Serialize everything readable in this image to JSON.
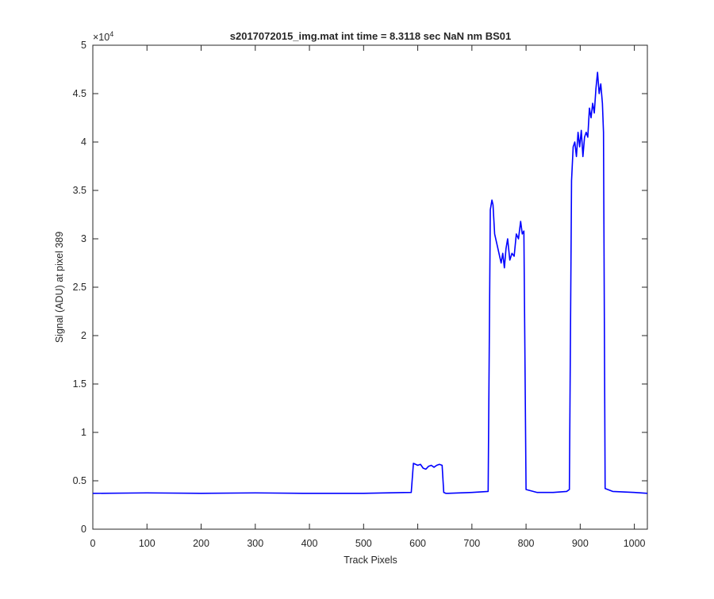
{
  "chart_data": {
    "type": "line",
    "title": "s2017072015_img.mat int time = 8.3118 sec  NaN nm BS01",
    "xlabel": "Track Pixels",
    "ylabel": "Signal (ADU) at pixel 389",
    "y_exponent_label": "×10",
    "y_exponent_power": "4",
    "xlim": [
      0,
      1024
    ],
    "ylim": [
      0,
      50000
    ],
    "x_ticks": [
      0,
      100,
      200,
      300,
      400,
      500,
      600,
      700,
      800,
      900,
      1000
    ],
    "x_tick_labels": [
      "0",
      "100",
      "200",
      "300",
      "400",
      "500",
      "600",
      "700",
      "800",
      "900",
      "1000"
    ],
    "y_ticks": [
      0,
      5000,
      10000,
      15000,
      20000,
      25000,
      30000,
      35000,
      40000,
      45000,
      50000
    ],
    "y_tick_labels": [
      "0",
      "0.5",
      "1",
      "1.5",
      "2",
      "2.5",
      "3",
      "3.5",
      "4",
      "4.5",
      "5"
    ],
    "grid": false,
    "line_color": "#0000ff",
    "series": [
      {
        "x": [
          0,
          100,
          200,
          300,
          400,
          500,
          588,
          592,
          596,
          600,
          605,
          610,
          615,
          620,
          625,
          630,
          635,
          640,
          645,
          648,
          652,
          656,
          700,
          730,
          734,
          737,
          739,
          742,
          746,
          750,
          754,
          757,
          760,
          763,
          766,
          770,
          774,
          778,
          782,
          786,
          790,
          793,
          796,
          800,
          820,
          850,
          875,
          880,
          884,
          887,
          890,
          893,
          896,
          899,
          902,
          905,
          908,
          911,
          914,
          917,
          920,
          923,
          926,
          929,
          932,
          935,
          938,
          941,
          943,
          946,
          960,
          1000,
          1024
        ],
        "y": [
          3700,
          3750,
          3700,
          3750,
          3700,
          3700,
          3800,
          6800,
          6700,
          6600,
          6700,
          6300,
          6200,
          6500,
          6600,
          6400,
          6600,
          6700,
          6600,
          3800,
          3700,
          3700,
          3800,
          3900,
          33000,
          34000,
          33500,
          30500,
          29500,
          28500,
          27500,
          28500,
          27000,
          29000,
          30000,
          27800,
          28500,
          28200,
          30500,
          30000,
          31800,
          30500,
          30800,
          4100,
          3800,
          3800,
          3900,
          4100,
          36000,
          39500,
          40000,
          38500,
          41000,
          39500,
          41200,
          38500,
          40500,
          41000,
          40500,
          43500,
          42500,
          44000,
          43000,
          45500,
          47200,
          45000,
          46000,
          44000,
          41000,
          4200,
          3900,
          3800,
          3700
        ]
      }
    ]
  }
}
